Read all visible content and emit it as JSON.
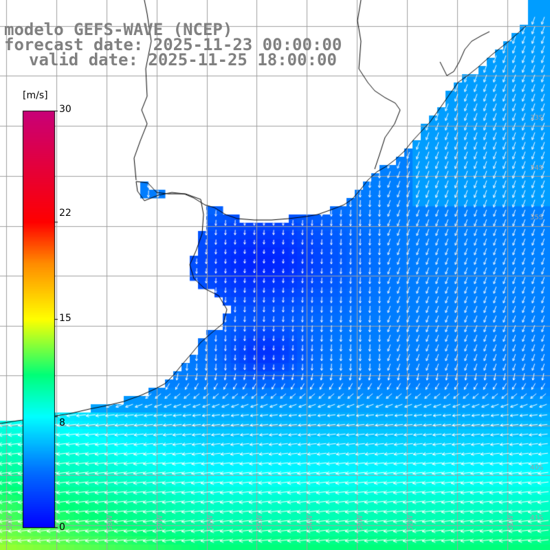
{
  "title": {
    "model_line": "modelo GEFS-WAVE (NCEP)",
    "forecast_line": "forecast date: 2025-11-23 00:00:00",
    "valid_line": "valid date: 2025-11-25 18:00:00"
  },
  "colorbar": {
    "unit": "[m/s]",
    "ticks": [
      "30",
      "22",
      "15",
      "8",
      "0"
    ],
    "tick_values": [
      30,
      22,
      15,
      8,
      0
    ],
    "range": [
      0,
      30
    ]
  },
  "grid": {
    "lat_labels": [
      "33S",
      "34S",
      "35S",
      "40S",
      "41S"
    ],
    "lon_labels": [
      "59W",
      "58W",
      "57W",
      "56W",
      "55W",
      "54W",
      "53W",
      "52W",
      "51W"
    ]
  },
  "map_style": {
    "land_color": "#ffffff",
    "coast_color": "#000000",
    "grid_color": "#a0a0a0",
    "arrow_color": "#ffffff",
    "title_color": "#808080"
  },
  "wind_field": {
    "description_units": "m/s",
    "speed_range_shown": [
      0,
      12
    ],
    "dominant_direction": "westward south of ~38S; southward inside the Rio de la Plata mouth; south-southwestward along the Uruguay/Brazil coast"
  }
}
